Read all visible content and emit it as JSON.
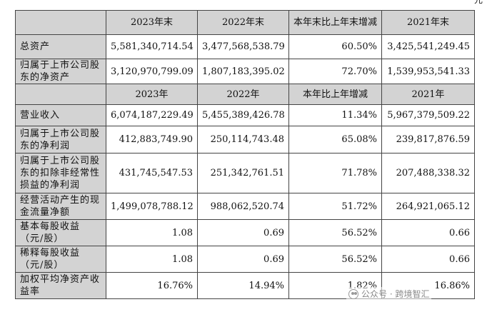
{
  "unit_mark": "元",
  "header1": [
    "",
    "2023年末",
    "2022年末",
    "本年末比上年末增减",
    "2021年末"
  ],
  "rows1": [
    {
      "label": "总资产",
      "values": [
        "5,581,340,714.54",
        "3,477,568,538.79",
        "60.50%",
        "3,425,541,249.45"
      ]
    },
    {
      "label": "归属于上市公司股东的净资产",
      "values": [
        "3,120,970,799.09",
        "1,807,183,395.02",
        "72.70%",
        "1,539,953,541.33"
      ]
    }
  ],
  "header2": [
    "",
    "2023年",
    "2022年",
    "本年比上年增减",
    "2021年"
  ],
  "rows2": [
    {
      "label": "营业收入",
      "values": [
        "6,074,187,229.49",
        "5,455,389,426.78",
        "11.34%",
        "5,967,379,509.22"
      ]
    },
    {
      "label": "归属于上市公司股东的净利润",
      "values": [
        "412,883,749.90",
        "250,114,743.48",
        "65.08%",
        "239,817,876.59"
      ]
    },
    {
      "label": "归属于上市公司股东的扣除非经常性损益的净利润",
      "values": [
        "431,745,547.53",
        "251,342,761.51",
        "71.78%",
        "207,488,338.32"
      ]
    },
    {
      "label": "经营活动产生的现金流量净额",
      "values": [
        "1,499,078,788.12",
        "988,062,520.74",
        "51.72%",
        "264,921,065.12"
      ]
    },
    {
      "label": "基本每股收益（元/股）",
      "values": [
        "1.08",
        "0.69",
        "56.52%",
        "0.66"
      ]
    },
    {
      "label": "稀释每股收益（元/股）",
      "values": [
        "1.08",
        "0.69",
        "56.52%",
        "0.66"
      ]
    },
    {
      "label": "加权平均净资产收益率",
      "values": [
        "16.76%",
        "14.94%",
        "1.82%",
        "16.86%"
      ]
    }
  ],
  "watermark": "公众号 · 跨境智汇"
}
